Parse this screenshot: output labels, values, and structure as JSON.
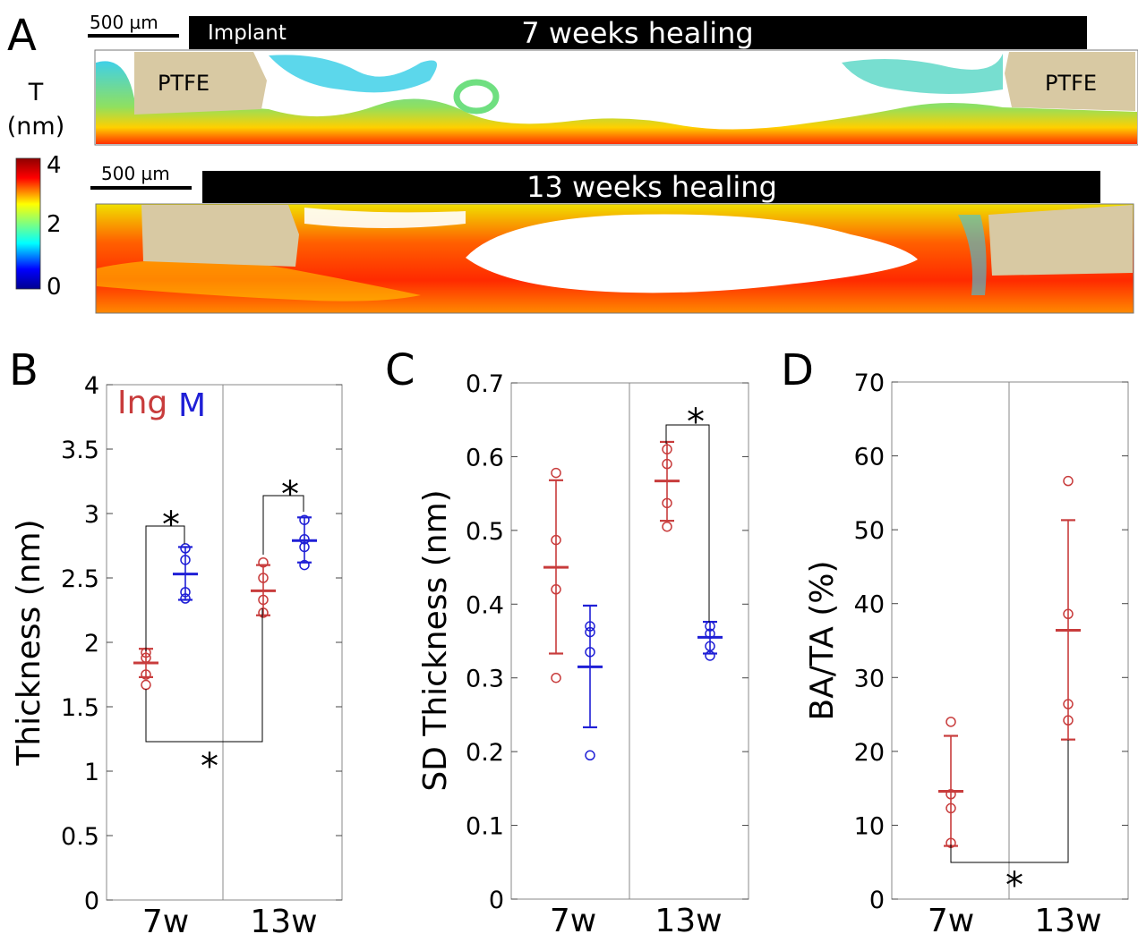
{
  "panel_a": {
    "letter": "A",
    "colorbar": {
      "symbol": "T",
      "unit": "(nm)",
      "ticks": [
        "4",
        "2",
        "0"
      ]
    },
    "maps": [
      {
        "scale_bar": "500 µm",
        "title": "7 weeks healing",
        "implant_label": "Implant",
        "left_label": "PTFE",
        "right_label": "PTFE"
      },
      {
        "scale_bar": "500 µm",
        "title": "13 weeks healing"
      }
    ]
  },
  "legend": {
    "ing": "Ing",
    "m": "M"
  },
  "colors": {
    "ing": "#c83c3c",
    "m": "#1f1fd6"
  },
  "chart_data": [
    {
      "panel": "B",
      "type": "scatter",
      "ylabel": "Thickness (nm)",
      "ylim": [
        0,
        4
      ],
      "yticks": [
        "0",
        "0.5",
        "1",
        "1.5",
        "2",
        "2.5",
        "3",
        "3.5",
        "4"
      ],
      "categories": [
        "7w",
        "13w"
      ],
      "series": [
        {
          "name": "Ing",
          "groups": [
            {
              "mean": 1.84,
              "low": 1.73,
              "high": 1.95,
              "points": [
                1.67,
                1.75,
                1.88,
                1.92
              ]
            },
            {
              "mean": 2.4,
              "low": 2.21,
              "high": 2.6,
              "points": [
                2.23,
                2.33,
                2.5,
                2.62
              ]
            }
          ]
        },
        {
          "name": "M",
          "groups": [
            {
              "mean": 2.53,
              "low": 2.33,
              "high": 2.74,
              "points": [
                2.34,
                2.39,
                2.64,
                2.73
              ]
            },
            {
              "mean": 2.79,
              "low": 2.62,
              "high": 2.97,
              "points": [
                2.6,
                2.74,
                2.8,
                2.95
              ]
            }
          ]
        }
      ],
      "significance": [
        "*",
        "*",
        "*"
      ]
    },
    {
      "panel": "C",
      "type": "scatter",
      "ylabel": "SD Thickness (nm)",
      "ylim": [
        0,
        0.7
      ],
      "yticks": [
        "0",
        "0.1",
        "0.2",
        "0.3",
        "0.4",
        "0.5",
        "0.6",
        "0.7"
      ],
      "categories": [
        "7w",
        "13w"
      ],
      "series": [
        {
          "name": "Ing",
          "groups": [
            {
              "mean": 0.45,
              "low": 0.333,
              "high": 0.568,
              "points": [
                0.3,
                0.42,
                0.487,
                0.578
              ]
            },
            {
              "mean": 0.567,
              "low": 0.513,
              "high": 0.62,
              "points": [
                0.505,
                0.537,
                0.59,
                0.61
              ]
            }
          ]
        },
        {
          "name": "M",
          "groups": [
            {
              "mean": 0.315,
              "low": 0.233,
              "high": 0.398,
              "points": [
                0.195,
                0.335,
                0.362,
                0.37
              ]
            },
            {
              "mean": 0.355,
              "low": 0.333,
              "high": 0.376,
              "points": [
                0.33,
                0.343,
                0.36,
                0.37
              ]
            }
          ]
        }
      ],
      "significance": [
        "*"
      ]
    },
    {
      "panel": "D",
      "type": "scatter",
      "ylabel": "BA/TA (%)",
      "ylim": [
        0,
        70
      ],
      "yticks": [
        "0",
        "10",
        "20",
        "30",
        "40",
        "50",
        "60",
        "70"
      ],
      "categories": [
        "7w",
        "13w"
      ],
      "series": [
        {
          "name": "Ing",
          "groups": [
            {
              "mean": 14.6,
              "low": 7.2,
              "high": 22.1,
              "points": [
                7.6,
                12.3,
                14.2,
                24.0
              ]
            },
            {
              "mean": 36.4,
              "low": 21.6,
              "high": 51.3,
              "points": [
                24.2,
                26.4,
                38.6,
                56.6
              ]
            }
          ]
        }
      ],
      "significance": [
        "*"
      ]
    }
  ]
}
